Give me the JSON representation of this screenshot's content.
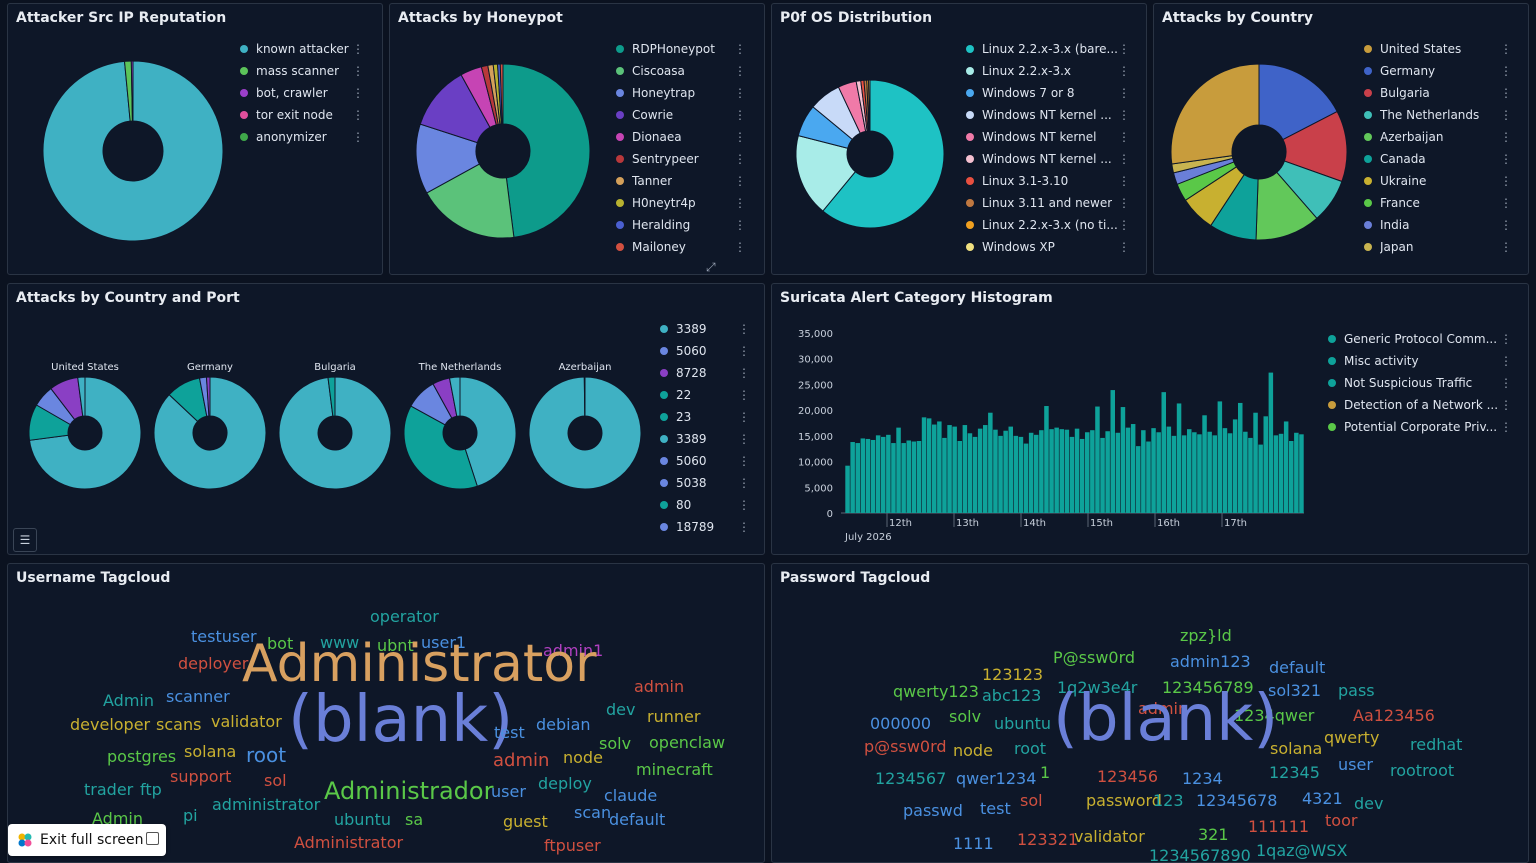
{
  "panels": {
    "reputation": {
      "title": "Attacker Src IP Reputation",
      "legend": [
        {
          "label": "known attacker",
          "color": "#3fb1c3"
        },
        {
          "label": "mass scanner",
          "color": "#5cc45a"
        },
        {
          "label": "bot, crawler",
          "color": "#9b3fc9"
        },
        {
          "label": "tor exit node",
          "color": "#e04f9c"
        },
        {
          "label": "anonymizer",
          "color": "#3fa84a"
        }
      ],
      "slices": [
        0.985,
        0.012,
        0.003
      ]
    },
    "honeypot": {
      "title": "Attacks by Honeypot",
      "legend": [
        {
          "label": "RDPHoneypot",
          "color": "#0d9b8b"
        },
        {
          "label": "Ciscoasa",
          "color": "#5bc27a"
        },
        {
          "label": "Honeytrap",
          "color": "#6a86e0"
        },
        {
          "label": "Cowrie",
          "color": "#6a3fc4"
        },
        {
          "label": "Dionaea",
          "color": "#c644b4"
        },
        {
          "label": "Sentrypeer",
          "color": "#b8383b"
        },
        {
          "label": "Tanner",
          "color": "#d4a05a"
        },
        {
          "label": "H0neytr4p",
          "color": "#b8b230"
        },
        {
          "label": "Heralding",
          "color": "#4a5fd0"
        },
        {
          "label": "Mailoney",
          "color": "#d25040"
        }
      ],
      "slices": [
        0.48,
        0.19,
        0.13,
        0.12,
        0.04,
        0.012,
        0.01,
        0.008,
        0.005,
        0.005
      ]
    },
    "p0f": {
      "title": "P0f OS Distribution",
      "legend": [
        {
          "label": "Linux 2.2.x-3.x (bare...",
          "color": "#1ec2c4"
        },
        {
          "label": "Linux 2.2.x-3.x",
          "color": "#a8ece8"
        },
        {
          "label": "Windows 7 or 8",
          "color": "#4aa8f0"
        },
        {
          "label": "Windows NT kernel ...",
          "color": "#c8daf8"
        },
        {
          "label": "Windows NT kernel",
          "color": "#f07aa8"
        },
        {
          "label": "Windows NT kernel ...",
          "color": "#f4c0d0"
        },
        {
          "label": "Linux 3.1-3.10",
          "color": "#e85040"
        },
        {
          "label": "Linux 3.11 and newer",
          "color": "#c07840"
        },
        {
          "label": "Linux 2.2.x-3.x (no ti...",
          "color": "#f0a020"
        },
        {
          "label": "Windows XP",
          "color": "#f0e080"
        }
      ],
      "slices": [
        0.61,
        0.18,
        0.07,
        0.07,
        0.04,
        0.01,
        0.007,
        0.006,
        0.004,
        0.003
      ]
    },
    "country": {
      "title": "Attacks by Country",
      "legend": [
        {
          "label": "United States",
          "color": "#c89c3c"
        },
        {
          "label": "Germany",
          "color": "#3f63c8"
        },
        {
          "label": "Bulgaria",
          "color": "#c9404a"
        },
        {
          "label": "The Netherlands",
          "color": "#3fbfb8"
        },
        {
          "label": "Azerbaijan",
          "color": "#62c85a"
        },
        {
          "label": "Canada",
          "color": "#0ea29a"
        },
        {
          "label": "Ukraine",
          "color": "#c8b030"
        },
        {
          "label": "France",
          "color": "#5ac848"
        },
        {
          "label": "India",
          "color": "#6a7fd8"
        },
        {
          "label": "Japan",
          "color": "#c8b450"
        }
      ],
      "slices": [
        0.25,
        0.16,
        0.12,
        0.075,
        0.11,
        0.08,
        0.06,
        0.03,
        0.02,
        0.015
      ],
      "start_color": "#c89c3c"
    },
    "country_port": {
      "title": "Attacks by Country and Port",
      "countries": [
        {
          "label": "United States",
          "slices": [
            0.7,
            0.1,
            0.06,
            0.08,
            0.02
          ]
        },
        {
          "label": "Germany",
          "slices": [
            0.87,
            0.1,
            0.02,
            0.01
          ]
        },
        {
          "label": "Bulgaria",
          "slices": [
            0.98,
            0.02
          ]
        },
        {
          "label": "The Netherlands",
          "slices": [
            0.45,
            0.38,
            0.09,
            0.05,
            0.03
          ]
        },
        {
          "label": "Azerbaijan",
          "slices": [
            0.998,
            0.002
          ]
        }
      ],
      "slice_colors": [
        "#3fb1c3",
        "#0ea29a",
        "#6a86e0",
        "#8a3fc4",
        "#3fb1c3"
      ],
      "legend": [
        {
          "label": "3389",
          "color": "#3fb1c3"
        },
        {
          "label": "5060",
          "color": "#6a86e0"
        },
        {
          "label": "8728",
          "color": "#8a3fc4"
        },
        {
          "label": "22",
          "color": "#0ea29a"
        },
        {
          "label": "23",
          "color": "#0ea29a"
        },
        {
          "label": "3389",
          "color": "#3fb1c3"
        },
        {
          "label": "5060",
          "color": "#6a86e0"
        },
        {
          "label": "5038",
          "color": "#6a86e0"
        },
        {
          "label": "80",
          "color": "#0ea29a"
        },
        {
          "label": "18789",
          "color": "#6a86e0"
        }
      ]
    },
    "suricata": {
      "title": "Suricata Alert Category Histogram",
      "legend": [
        {
          "label": "Generic Protocol Comm...",
          "color": "#0ea29a"
        },
        {
          "label": "Misc activity",
          "color": "#0ea29a"
        },
        {
          "label": "Not Suspicious Traffic",
          "color": "#0ea29a"
        },
        {
          "label": "Detection of a Network ...",
          "color": "#c89c3c"
        },
        {
          "label": "Potential Corporate Priv...",
          "color": "#5ac848"
        }
      ]
    },
    "username": {
      "title": "Username Tagcloud"
    },
    "password": {
      "title": "Password Tagcloud"
    }
  },
  "chart_data": [
    {
      "type": "bar",
      "title": "Suricata Alert Category Histogram",
      "xlabel": "July 2026",
      "x_ticks": [
        "12th",
        "13th",
        "14th",
        "15th",
        "16th",
        "17th"
      ],
      "y_ticks": [
        "35,000",
        "30,000",
        "25,000",
        "20,000",
        "15,000",
        "10,000",
        "5,000",
        "0"
      ],
      "ylim": [
        0,
        35000
      ],
      "values": [
        9200,
        13800,
        13600,
        14500,
        14400,
        14200,
        15100,
        14800,
        15200,
        13600,
        16600,
        13600,
        14100,
        13900,
        14000,
        18600,
        18400,
        17200,
        17800,
        14600,
        17100,
        16800,
        14000,
        17100,
        15500,
        14800,
        16400,
        17100,
        19500,
        16200,
        15000,
        16000,
        16800,
        15000,
        14800,
        13500,
        15600,
        15200,
        16100,
        20800,
        16300,
        16600,
        16300,
        16200,
        14800,
        16400,
        14400,
        15700,
        16100,
        20700,
        14600,
        15900,
        23900,
        15600,
        20600,
        16600,
        17300,
        13000,
        16100,
        13900,
        16500,
        15700,
        23500,
        16800,
        15000,
        21300,
        15100,
        16300,
        15700,
        15300,
        19000,
        15800,
        15100,
        21700,
        16500,
        15500,
        18200,
        21400,
        15800,
        14600,
        19500,
        13300,
        18800,
        27300,
        15100,
        15400,
        17800,
        14000,
        15600,
        15300
      ]
    }
  ],
  "username_cloud": [
    {
      "t": "operator",
      "c": "#22a3a0",
      "s": 16
    },
    {
      "t": "testuser",
      "c": "#4a90e0",
      "s": 16
    },
    {
      "t": "bot",
      "c": "#5ac848",
      "s": 16
    },
    {
      "t": "www",
      "c": "#22a3a0",
      "s": 16
    },
    {
      "t": "ubnt",
      "c": "#5ac848",
      "s": 16
    },
    {
      "t": "user1",
      "c": "#4a90e0",
      "s": 16
    },
    {
      "t": "admin1",
      "c": "#b040c0",
      "s": 16
    },
    {
      "t": "deployer",
      "c": "#d05040",
      "s": 16
    },
    {
      "t": "Administrator",
      "c": "#d8a060",
      "s": 52
    },
    {
      "t": "admin",
      "c": "#d05040",
      "s": 16
    },
    {
      "t": "Admin",
      "c": "#22a3a0",
      "s": 16
    },
    {
      "t": "scanner",
      "c": "#4a90e0",
      "s": 16
    },
    {
      "t": "dev",
      "c": "#22a3a0",
      "s": 16
    },
    {
      "t": "developer",
      "c": "#c8b030",
      "s": 16
    },
    {
      "t": "scans",
      "c": "#c8b030",
      "s": 16
    },
    {
      "t": "validator",
      "c": "#c8b030",
      "s": 16
    },
    {
      "t": "runner",
      "c": "#c8b030",
      "s": 16
    },
    {
      "t": "(blank)",
      "c": "#6a7fd8",
      "s": 64
    },
    {
      "t": "test",
      "c": "#4a90e0",
      "s": 16
    },
    {
      "t": "debian",
      "c": "#4a90e0",
      "s": 16
    },
    {
      "t": "postgres",
      "c": "#5ac848",
      "s": 16
    },
    {
      "t": "solana",
      "c": "#c8b030",
      "s": 16
    },
    {
      "t": "root",
      "c": "#4a90e0",
      "s": 20
    },
    {
      "t": "solv",
      "c": "#5ac848",
      "s": 16
    },
    {
      "t": "openclaw",
      "c": "#5ac848",
      "s": 16
    },
    {
      "t": "node",
      "c": "#c8b030",
      "s": 16
    },
    {
      "t": "admin",
      "c": "#d05040",
      "s": 18
    },
    {
      "t": "support",
      "c": "#d05040",
      "s": 16
    },
    {
      "t": "sol",
      "c": "#d05040",
      "s": 16
    },
    {
      "t": "minecraft",
      "c": "#5ac848",
      "s": 16
    },
    {
      "t": "deploy",
      "c": "#22a3a0",
      "s": 16
    },
    {
      "t": "trader",
      "c": "#22a3a0",
      "s": 16
    },
    {
      "t": "ftp",
      "c": "#22a3a0",
      "s": 16
    },
    {
      "t": "Administrador",
      "c": "#5ac848",
      "s": 24
    },
    {
      "t": "user",
      "c": "#4a90e0",
      "s": 16
    },
    {
      "t": "claude",
      "c": "#4a90e0",
      "s": 16
    },
    {
      "t": "administrator",
      "c": "#22a3a0",
      "s": 16
    },
    {
      "t": "pi",
      "c": "#22a3a0",
      "s": 16
    },
    {
      "t": "scan",
      "c": "#4a90e0",
      "s": 16
    },
    {
      "t": "default",
      "c": "#4a90e0",
      "s": 16
    },
    {
      "t": "ubuntu",
      "c": "#22a3a0",
      "s": 16
    },
    {
      "t": "sa",
      "c": "#5ac848",
      "s": 16
    },
    {
      "t": "guest",
      "c": "#c8b030",
      "s": 16
    },
    {
      "t": "Admin",
      "c": "#5ac848",
      "s": 16
    },
    {
      "t": "Administrator",
      "c": "#d05040",
      "s": 16
    },
    {
      "t": "ftpuser",
      "c": "#d05040",
      "s": 16
    }
  ],
  "password_cloud": [
    {
      "t": "zpz}ld",
      "c": "#5ac848",
      "s": 16
    },
    {
      "t": "P@ssw0rd",
      "c": "#5ac848",
      "s": 16
    },
    {
      "t": "123123",
      "c": "#c8b030",
      "s": 16
    },
    {
      "t": "admin123",
      "c": "#4a90e0",
      "s": 16
    },
    {
      "t": "default",
      "c": "#4a90e0",
      "s": 16
    },
    {
      "t": "qwerty123",
      "c": "#5ac848",
      "s": 16
    },
    {
      "t": "abc123",
      "c": "#22a3a0",
      "s": 16
    },
    {
      "t": "1q2w3e4r",
      "c": "#22a3a0",
      "s": 16
    },
    {
      "t": "123456789",
      "c": "#5ac848",
      "s": 16
    },
    {
      "t": "sol321",
      "c": "#4a90e0",
      "s": 16
    },
    {
      "t": "pass",
      "c": "#22a3a0",
      "s": 16
    },
    {
      "t": "admin",
      "c": "#d05040",
      "s": 16
    },
    {
      "t": "1234qwer",
      "c": "#5ac848",
      "s": 16
    },
    {
      "t": "Aa123456",
      "c": "#d05040",
      "s": 16
    },
    {
      "t": "000000",
      "c": "#4a90e0",
      "s": 16
    },
    {
      "t": "solv",
      "c": "#5ac848",
      "s": 16
    },
    {
      "t": "ubuntu",
      "c": "#22a3a0",
      "s": 16
    },
    {
      "t": "(blank)",
      "c": "#6a7fd8",
      "s": 64
    },
    {
      "t": "qwerty",
      "c": "#c8b030",
      "s": 16
    },
    {
      "t": "p@ssw0rd",
      "c": "#d05040",
      "s": 16
    },
    {
      "t": "node",
      "c": "#c8b030",
      "s": 16
    },
    {
      "t": "root",
      "c": "#22a3a0",
      "s": 16
    },
    {
      "t": "solana",
      "c": "#c8b030",
      "s": 16
    },
    {
      "t": "redhat",
      "c": "#22a3a0",
      "s": 16
    },
    {
      "t": "1234567",
      "c": "#22a3a0",
      "s": 16
    },
    {
      "t": "qwer1234",
      "c": "#4a90e0",
      "s": 16
    },
    {
      "t": "1",
      "c": "#5ac848",
      "s": 16
    },
    {
      "t": "123456",
      "c": "#d05040",
      "s": 16
    },
    {
      "t": "1234",
      "c": "#4a90e0",
      "s": 16
    },
    {
      "t": "12345",
      "c": "#22a3a0",
      "s": 16
    },
    {
      "t": "user",
      "c": "#4a90e0",
      "s": 16
    },
    {
      "t": "rootroot",
      "c": "#22a3a0",
      "s": 16
    },
    {
      "t": "passwd",
      "c": "#4a90e0",
      "s": 16
    },
    {
      "t": "test",
      "c": "#4a90e0",
      "s": 16
    },
    {
      "t": "sol",
      "c": "#d05040",
      "s": 16
    },
    {
      "t": "password",
      "c": "#c8b030",
      "s": 16
    },
    {
      "t": "123",
      "c": "#22a3a0",
      "s": 16
    },
    {
      "t": "12345678",
      "c": "#4a90e0",
      "s": 16
    },
    {
      "t": "4321",
      "c": "#4a90e0",
      "s": 16
    },
    {
      "t": "dev",
      "c": "#22a3a0",
      "s": 16
    },
    {
      "t": "111111",
      "c": "#d05040",
      "s": 16
    },
    {
      "t": "toor",
      "c": "#d05040",
      "s": 16
    },
    {
      "t": "validator",
      "c": "#c8b030",
      "s": 16
    },
    {
      "t": "321",
      "c": "#5ac848",
      "s": 16
    },
    {
      "t": "1111",
      "c": "#4a90e0",
      "s": 16
    },
    {
      "t": "123321",
      "c": "#d05040",
      "s": 16
    },
    {
      "t": "1234567890",
      "c": "#22a3a0",
      "s": 16
    },
    {
      "t": "1qaz@WSX",
      "c": "#22a3a0",
      "s": 16
    }
  ],
  "exit_button": {
    "label": "Exit full screen"
  }
}
